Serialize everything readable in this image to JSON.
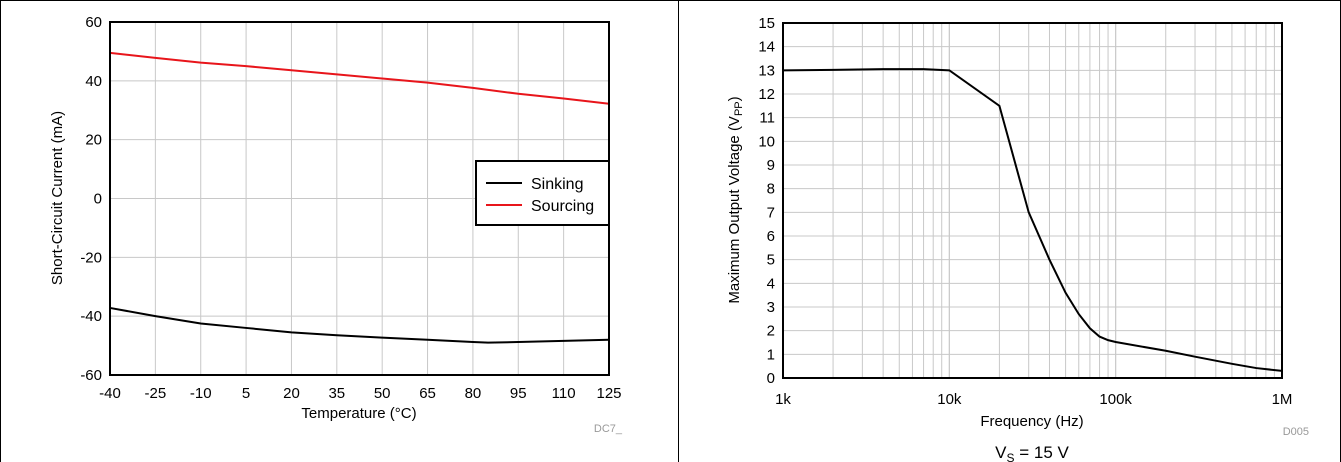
{
  "chart_data": [
    {
      "type": "line",
      "title": "",
      "xlabel": "Temperature (°C)",
      "ylabel": "Short-Circuit Current (mA)",
      "x": [
        -40,
        -25,
        -10,
        5,
        20,
        35,
        50,
        65,
        80,
        95,
        110,
        125
      ],
      "xticks": [
        "-40",
        "-25",
        "-10",
        "5",
        "20",
        "35",
        "50",
        "65",
        "80",
        "95",
        "110",
        "125"
      ],
      "yticks": [
        "-60",
        "-40",
        "-20",
        "0",
        "20",
        "40",
        "60"
      ],
      "xlim": [
        -40,
        125
      ],
      "ylim": [
        -60,
        60
      ],
      "grid": true,
      "legend": "right-middle",
      "series": [
        {
          "name": "Sinking",
          "color": "#000000",
          "x": [
            -40,
            -25,
            -10,
            5,
            20,
            35,
            50,
            65,
            80,
            85,
            95,
            110,
            125
          ],
          "y": [
            -37.2,
            -40.0,
            -42.5,
            -44.0,
            -45.5,
            -46.5,
            -47.3,
            -48.0,
            -48.8,
            -49.0,
            -48.8,
            -48.4,
            -48.0
          ]
        },
        {
          "name": "Sourcing",
          "color": "#e8151b",
          "x": [
            -40,
            -25,
            -10,
            5,
            20,
            35,
            50,
            65,
            80,
            95,
            110,
            125
          ],
          "y": [
            49.5,
            47.8,
            46.2,
            45.0,
            43.6,
            42.2,
            40.8,
            39.4,
            37.6,
            35.6,
            34.0,
            32.2
          ]
        }
      ],
      "footnote": "DC7_"
    },
    {
      "type": "line",
      "title": "",
      "xlabel": "Frequency (Hz)",
      "ylabel_main": "Maximum Output Voltage (V",
      "ylabel_sub": "PP",
      "ylabel_end": ")",
      "x_scale": "log",
      "xlim": [
        1000,
        1000000
      ],
      "ylim": [
        0,
        15
      ],
      "xticks": [
        "1k",
        "10k",
        "100k",
        "1M"
      ],
      "yticks": [
        "0",
        "1",
        "2",
        "3",
        "4",
        "5",
        "6",
        "7",
        "8",
        "9",
        "10",
        "11",
        "12",
        "13",
        "14",
        "15"
      ],
      "grid": true,
      "series": [
        {
          "color": "#000000",
          "x": [
            1000,
            2000,
            4000,
            7000,
            10000,
            20000,
            30000,
            40000,
            50000,
            60000,
            70000,
            80000,
            90000,
            100000,
            200000,
            300000,
            500000,
            700000,
            1000000
          ],
          "y": [
            13.0,
            13.02,
            13.05,
            13.05,
            13.0,
            11.5,
            7.0,
            5.0,
            3.6,
            2.7,
            2.1,
            1.75,
            1.6,
            1.52,
            1.15,
            0.9,
            0.6,
            0.42,
            0.3
          ]
        }
      ],
      "footnote": "D005",
      "caption_main": "V",
      "caption_sub": "S",
      "caption_end": " = 15 V"
    }
  ]
}
